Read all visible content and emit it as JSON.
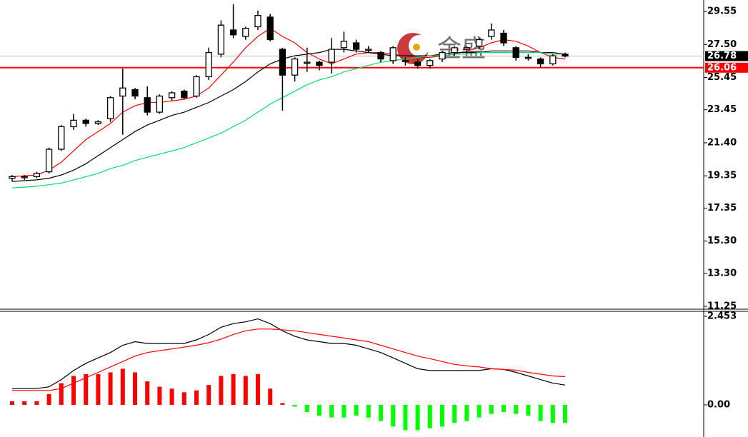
{
  "chart_data": [
    {
      "type": "candlestick",
      "open": [
        19.2,
        19.3,
        19.3,
        19.6,
        21.0,
        22.4,
        22.8,
        22.6,
        22.9,
        24.3,
        24.7,
        24.2,
        23.3,
        24.2,
        24.6,
        24.3,
        25.5,
        26.9,
        28.4,
        28.0,
        28.6,
        29.2,
        27.2,
        25.6,
        26.4,
        26.4,
        26.4,
        27.3,
        27.6,
        27.2,
        27.0,
        26.5,
        26.5,
        26.4,
        26.2,
        26.6,
        27.0,
        27.2,
        27.4,
        28.0,
        28.2,
        27.3,
        26.7,
        26.6,
        26.3,
        26.9
      ],
      "high": [
        19.4,
        19.4,
        19.6,
        21.1,
        22.5,
        23.2,
        22.9,
        22.8,
        24.3,
        26.0,
        24.8,
        24.9,
        24.4,
        24.6,
        24.7,
        25.6,
        27.3,
        29.0,
        30.0,
        28.6,
        29.6,
        29.4,
        27.3,
        26.7,
        27.3,
        26.5,
        27.9,
        28.3,
        27.8,
        27.4,
        27.1,
        27.4,
        26.7,
        26.6,
        26.6,
        27.1,
        27.4,
        27.4,
        27.9,
        28.8,
        28.4,
        27.4,
        26.9,
        26.7,
        26.9,
        27.0
      ],
      "low": [
        19.0,
        19.1,
        19.2,
        19.5,
        20.9,
        22.2,
        22.4,
        22.5,
        22.7,
        21.9,
        24.1,
        23.1,
        23.2,
        24.0,
        24.1,
        24.2,
        25.3,
        26.7,
        27.9,
        27.8,
        28.4,
        27.7,
        23.4,
        25.2,
        25.8,
        25.9,
        25.7,
        27.0,
        27.0,
        27.0,
        26.4,
        26.3,
        26.2,
        26.0,
        26.0,
        26.4,
        26.8,
        27.0,
        27.2,
        27.8,
        27.4,
        26.5,
        26.5,
        26.1,
        26.2,
        26.7
      ],
      "close": [
        19.3,
        19.3,
        19.5,
        21.0,
        22.4,
        22.8,
        22.6,
        22.7,
        24.2,
        24.8,
        24.3,
        23.3,
        24.3,
        24.5,
        24.2,
        25.5,
        27.0,
        28.7,
        28.1,
        28.5,
        29.3,
        27.8,
        25.6,
        26.6,
        26.4,
        26.2,
        27.2,
        27.7,
        27.2,
        27.2,
        26.6,
        27.3,
        26.5,
        26.2,
        26.5,
        27.0,
        27.3,
        27.3,
        27.8,
        28.4,
        27.6,
        26.7,
        26.7,
        26.3,
        26.8,
        26.78
      ],
      "series": [
        {
          "color": "#ff0000",
          "values": [
            19.3,
            19.35,
            19.4,
            19.7,
            20.2,
            20.9,
            21.6,
            22.1,
            22.6,
            23.3,
            23.7,
            23.9,
            23.9,
            24.0,
            24.1,
            24.3,
            24.8,
            25.6,
            26.4,
            27.3,
            28.0,
            28.5,
            28.0,
            27.6,
            27.0,
            26.6,
            26.3,
            26.6,
            26.9,
            27.0,
            27.0,
            26.9,
            26.8,
            26.7,
            26.7,
            26.8,
            26.9,
            27.1,
            27.3,
            27.6,
            27.8,
            27.7,
            27.4,
            27.0,
            26.7,
            26.6
          ]
        },
        {
          "color": "#000000",
          "values": [
            19.0,
            19.05,
            19.1,
            19.2,
            19.4,
            19.7,
            20.1,
            20.6,
            21.1,
            21.6,
            22.1,
            22.5,
            22.8,
            23.1,
            23.3,
            23.6,
            23.9,
            24.3,
            24.7,
            25.2,
            25.8,
            26.3,
            26.6,
            26.8,
            26.9,
            27.0,
            27.2,
            27.2,
            27.1,
            27.0,
            26.9,
            26.8,
            26.8,
            26.8,
            26.8,
            26.9,
            27.0,
            27.0,
            27.0,
            27.1,
            27.1,
            27.1,
            27.1,
            27.0,
            27.0,
            26.9
          ]
        },
        {
          "color": "#00dd66",
          "values": [
            18.6,
            18.65,
            18.7,
            18.8,
            18.9,
            19.1,
            19.3,
            19.5,
            19.8,
            20.0,
            20.3,
            20.5,
            20.7,
            20.9,
            21.1,
            21.4,
            21.7,
            22.0,
            22.4,
            22.8,
            23.3,
            23.8,
            24.2,
            24.6,
            25.0,
            25.3,
            25.5,
            25.8,
            26.0,
            26.2,
            26.4,
            26.5,
            26.6,
            26.7,
            26.8,
            26.8,
            26.9,
            26.9,
            27.0,
            27.0,
            27.0,
            27.0,
            27.0,
            27.0,
            26.9,
            26.9
          ]
        }
      ],
      "ylim": [
        11.12,
        30.26
      ],
      "yticks": [
        29.55,
        {
          "value": 27.5,
          "label": "27.50"
        },
        25.45,
        23.45,
        {
          "value": 21.4,
          "label": "21.40"
        },
        19.35,
        17.35,
        {
          "value": 15.3,
          "label": "15.30"
        },
        {
          "value": 13.3,
          "label": "13.30"
        },
        11.25
      ],
      "price_lines": [
        {
          "value": 26.78,
          "color": "#000000"
        },
        {
          "value": 26.06,
          "color": "#ff0000"
        }
      ],
      "watermark": "金盛"
    },
    {
      "type": "macd",
      "histogram": [
        0.1,
        0.1,
        0.1,
        0.3,
        0.6,
        0.8,
        0.85,
        0.85,
        0.9,
        1.0,
        0.9,
        0.65,
        0.5,
        0.45,
        0.35,
        0.4,
        0.55,
        0.8,
        0.85,
        0.8,
        0.85,
        0.45,
        0.05,
        -0.05,
        -0.2,
        -0.3,
        -0.35,
        -0.35,
        -0.3,
        -0.35,
        -0.45,
        -0.6,
        -0.7,
        -0.7,
        -0.65,
        -0.6,
        -0.5,
        -0.45,
        -0.35,
        -0.25,
        -0.2,
        -0.25,
        -0.3,
        -0.45,
        -0.5,
        -0.5
      ],
      "positive_color": "#ff0000",
      "negative_color": "#00ff00",
      "series": [
        {
          "color": "#000000",
          "values": [
            0.45,
            0.45,
            0.45,
            0.5,
            0.7,
            0.95,
            1.15,
            1.3,
            1.45,
            1.65,
            1.75,
            1.7,
            1.7,
            1.7,
            1.7,
            1.8,
            1.95,
            2.15,
            2.25,
            2.3,
            2.38,
            2.25,
            2.05,
            1.9,
            1.8,
            1.75,
            1.7,
            1.7,
            1.65,
            1.55,
            1.45,
            1.3,
            1.15,
            1.0,
            0.95,
            0.95,
            0.95,
            0.95,
            0.95,
            1.0,
            0.98,
            0.9,
            0.8,
            0.7,
            0.6,
            0.55
          ]
        },
        {
          "color": "#ff0000",
          "values": [
            0.4,
            0.4,
            0.4,
            0.4,
            0.45,
            0.6,
            0.75,
            0.9,
            1.05,
            1.2,
            1.35,
            1.45,
            1.5,
            1.55,
            1.6,
            1.65,
            1.72,
            1.82,
            1.95,
            2.05,
            2.1,
            2.1,
            2.08,
            2.05,
            2.0,
            1.95,
            1.9,
            1.85,
            1.8,
            1.75,
            1.65,
            1.55,
            1.45,
            1.35,
            1.28,
            1.2,
            1.12,
            1.08,
            1.05,
            1.0,
            0.98,
            0.96,
            0.9,
            0.85,
            0.8,
            0.78
          ]
        }
      ],
      "ylim": [
        -0.89,
        2.59
      ],
      "yticks": [
        2.453,
        {
          "value": 0,
          "label": "0.00"
        }
      ]
    }
  ]
}
